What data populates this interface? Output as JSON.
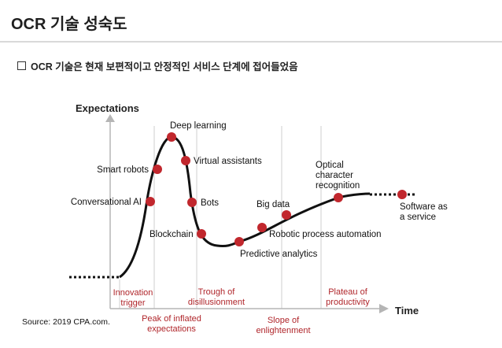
{
  "header": {
    "title": "OCR 기술 성숙도",
    "bullet": "OCR 기술은 현재 보편적이고 안정적인 서비스 단계에 접어들었음"
  },
  "diagram": {
    "y_axis_label": "Expectations",
    "x_axis_label": "Time",
    "points": [
      {
        "label": "Conversational AI"
      },
      {
        "label": "Smart robots"
      },
      {
        "label": "Deep learning"
      },
      {
        "label": "Virtual assistants"
      },
      {
        "label": "Bots"
      },
      {
        "label": "Blockchain"
      },
      {
        "label": "Predictive analytics"
      },
      {
        "label": "Robotic process automation"
      },
      {
        "label": "Big data"
      },
      {
        "label": "Optical",
        "label2": "character",
        "label3": "recognition"
      },
      {
        "label": "Software as",
        "label2": "a service"
      }
    ],
    "phases": [
      {
        "line1": "Innovation",
        "line2": "trigger"
      },
      {
        "line1": "Peak of inflated",
        "line2": "expectations"
      },
      {
        "line1": "Trough of",
        "line2": "disillusionment"
      },
      {
        "line1": "Slope of",
        "line2": "enlightenment"
      },
      {
        "line1": "Plateau of",
        "line2": "productivity"
      }
    ],
    "source": "Source: 2019 CPA.com.",
    "colors": {
      "marker": "#c1272d",
      "curve": "#111111",
      "phase_text": "#b0262b",
      "divider": "#cfcfcf",
      "axis": "#b5b5b5"
    }
  }
}
